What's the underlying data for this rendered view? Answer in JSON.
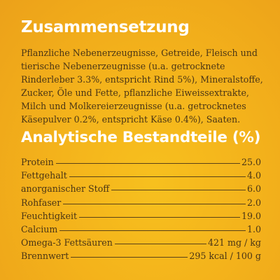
{
  "composition": {
    "heading": "Zusammensetzung",
    "text": "Pflanzliche Nebenerzeugnisse, Getreide, Fleisch und tierische Nebenerzeugnisse (u.a. getrocknete Rinderleber 3.3%, entspricht Rind 5%), Mineralstoffe, Zucker, Öle und Fette, pflanzliche Eiweissextrakte, Milch und Molkereierzeugnisse (u.a. getrocknetes Käsepulver 0.2%, entspricht Käse 0.4%), Saaten."
  },
  "analysis": {
    "heading": "Analytische Bestandteile (%)",
    "rows": [
      {
        "label": "Protein",
        "value": "25.0"
      },
      {
        "label": "Fettgehalt",
        "value": "4.0"
      },
      {
        "label": "anorganischer Stoff",
        "value": "6.0"
      },
      {
        "label": "Rohfaser",
        "value": "2.0"
      },
      {
        "label": "Feuchtigkeit",
        "value": "19.0"
      },
      {
        "label": "Calcium",
        "value": "1.0"
      },
      {
        "label": "Omega-3 Fettsäuren",
        "value": "421 mg / kg"
      },
      {
        "label": "Brennwert",
        "value": "295 kcal / 100 g"
      }
    ]
  },
  "colors": {
    "background": "#f4b31b",
    "heading": "#ffffff",
    "text": "#4a3515"
  }
}
